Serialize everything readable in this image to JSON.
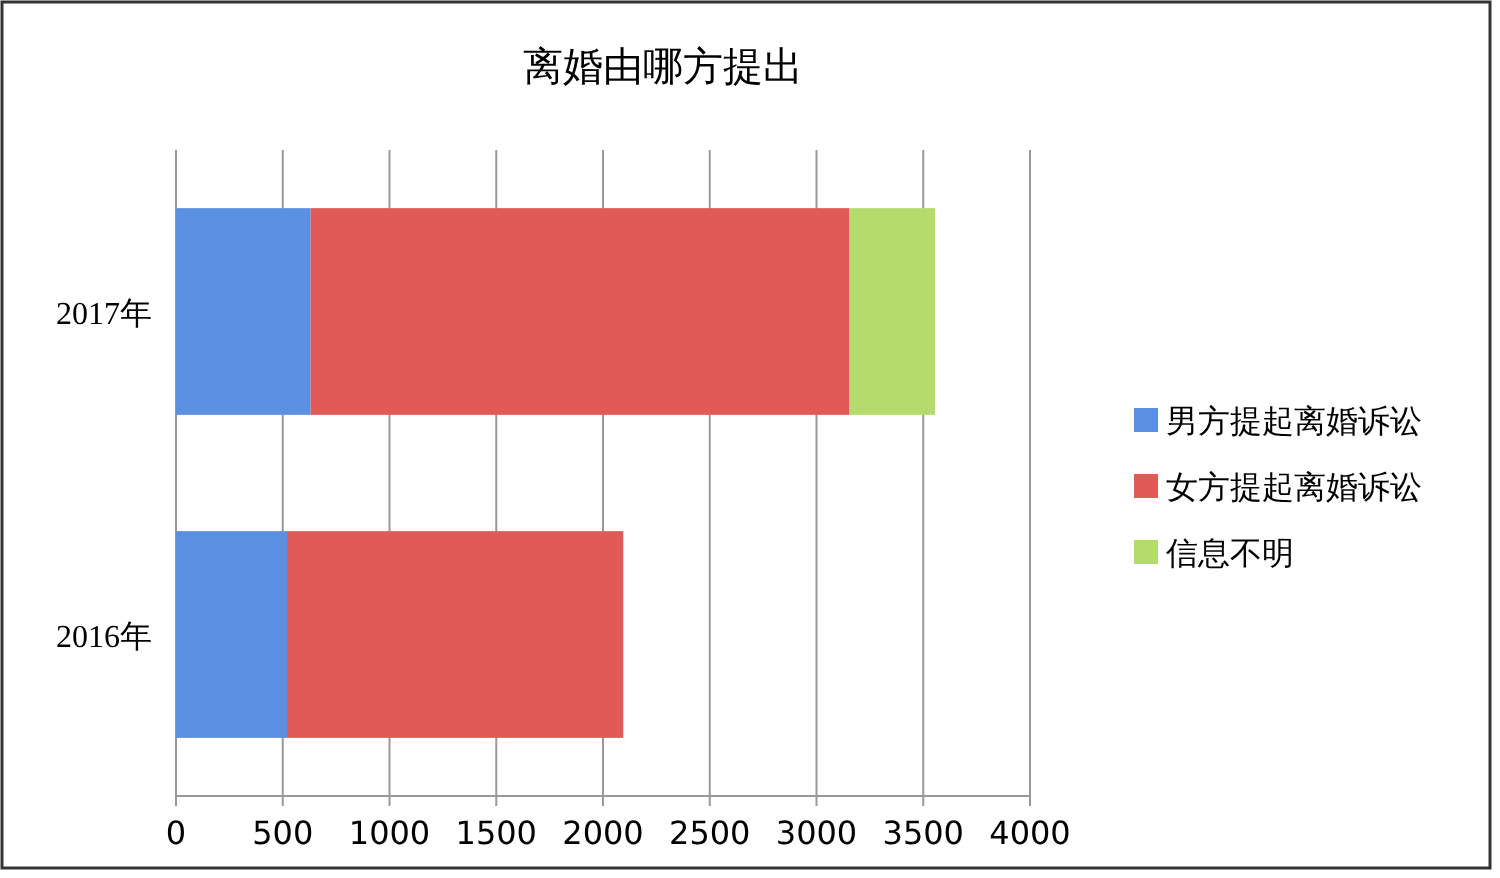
{
  "chart_data": {
    "type": "bar",
    "orientation": "horizontal",
    "stacked": true,
    "title": "离婚由哪方提出",
    "categories": [
      "2017年",
      "2016年"
    ],
    "series": [
      {
        "name": "男方提起离婚诉讼",
        "color": "#5b8fdf",
        "values": [
          630,
          520
        ]
      },
      {
        "name": "女方提起离婚诉讼",
        "color": "#e05a57",
        "values": [
          2525,
          1575
        ]
      },
      {
        "name": "信息不明",
        "color": "#b4dc6c",
        "values": [
          400,
          null
        ]
      }
    ],
    "xlim": [
      0,
      4000
    ],
    "xticks": [
      0,
      500,
      1000,
      1500,
      2000,
      2500,
      3000,
      3500,
      4000
    ],
    "grid": "x",
    "legend": "right"
  }
}
